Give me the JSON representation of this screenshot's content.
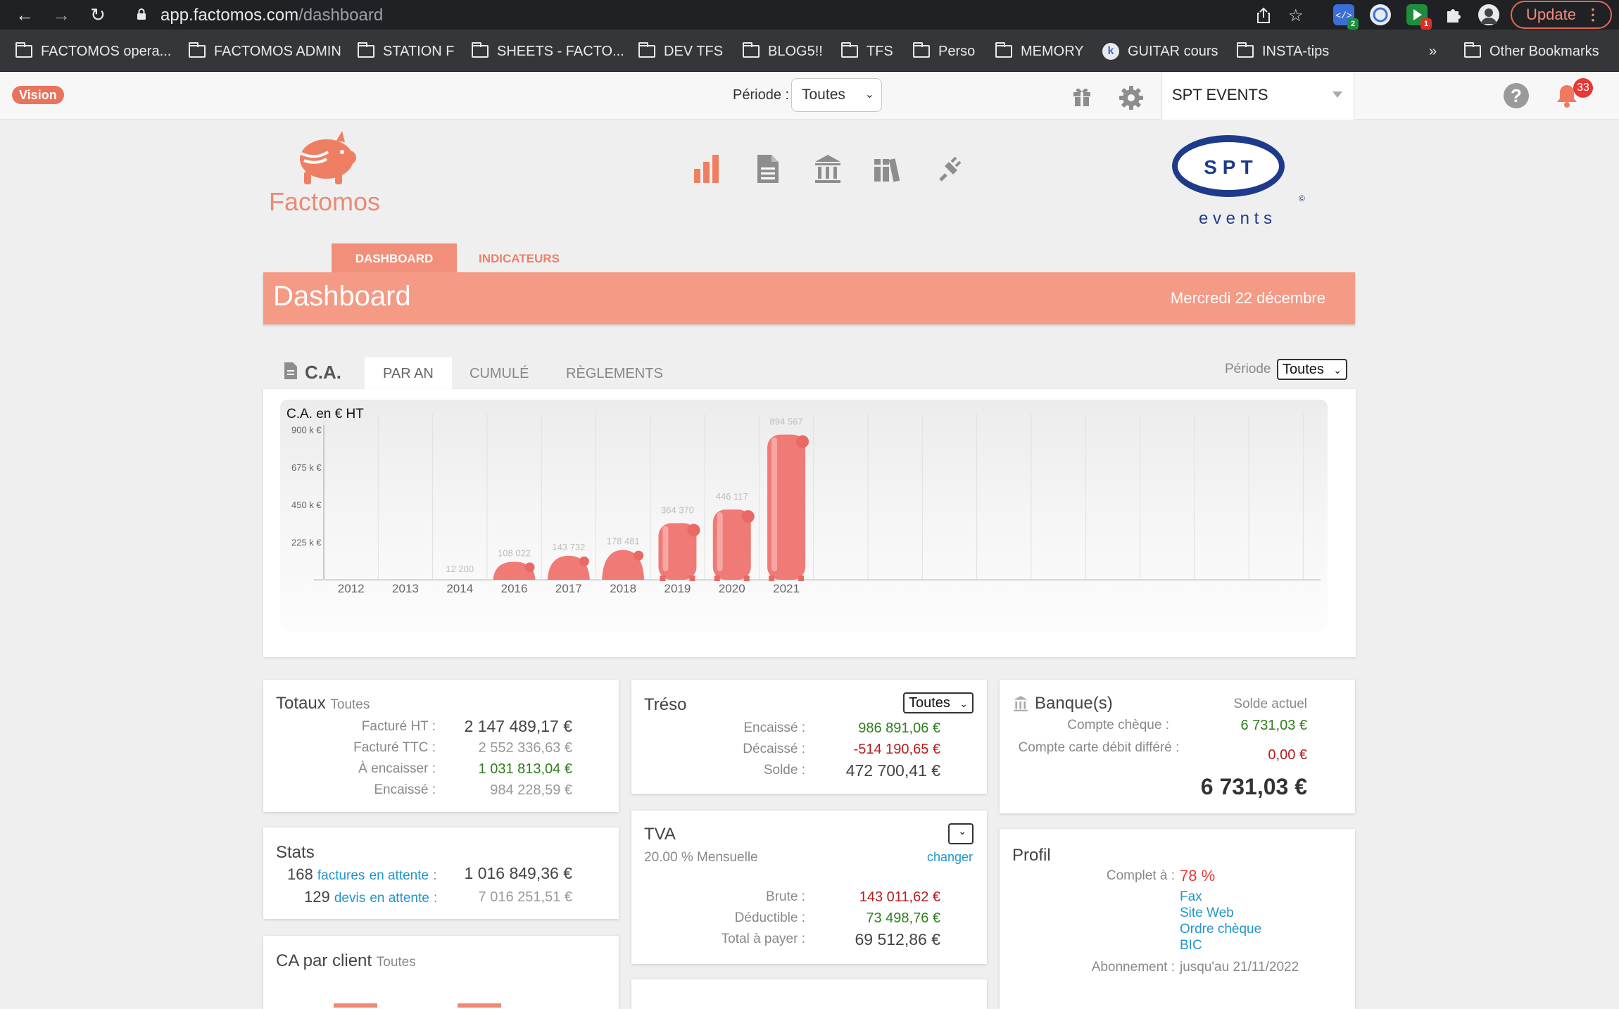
{
  "browser": {
    "url_host": "app.factomos.com",
    "url_path": "/dashboard",
    "update_label": "Update",
    "bookmarks": [
      {
        "label": "FACTOMOS opera..."
      },
      {
        "label": "FACTOMOS ADMIN"
      },
      {
        "label": "STATION F"
      },
      {
        "label": "SHEETS - FACTO..."
      },
      {
        "label": "DEV TFS"
      },
      {
        "label": "BLOG5!!"
      },
      {
        "label": "TFS"
      },
      {
        "label": "Perso"
      },
      {
        "label": "MEMORY"
      },
      {
        "label": "GUITAR cours"
      },
      {
        "label": "INSTA-tips"
      }
    ],
    "more_label": "»",
    "other_bookmarks": "Other Bookmarks",
    "ext_badges": [
      "2",
      "1"
    ]
  },
  "appbar": {
    "vision_label": "Vision",
    "periode_label": "Période :",
    "periode_value": "Toutes",
    "company_name": "SPT EVENTS",
    "notifications_count": "33",
    "help_glyph": "?"
  },
  "header": {
    "logo_text": "Factomos",
    "spt_letters": "S P T",
    "spt_sub": "e v e n t s",
    "spt_copyright": "©"
  },
  "tabs": {
    "dashboard": "DASHBOARD",
    "indicateurs": "INDICATEURS"
  },
  "banner": {
    "title": "Dashboard",
    "date": "Mercredi 22 décembre"
  },
  "ca": {
    "title": "C.A.",
    "tabs": [
      "PAR AN",
      "CUMULÉ",
      "RÈGLEMENTS"
    ],
    "periode_label": "Période",
    "periode_value": "Toutes",
    "chart_label": "C.A. en € HT"
  },
  "chart_data": {
    "type": "bar",
    "title": "C.A. en € HT",
    "categories": [
      "2012",
      "2013",
      "2014",
      "2016",
      "2017",
      "2018",
      "2019",
      "2020",
      "2021"
    ],
    "values": [
      0,
      0,
      12200,
      108022,
      143732,
      178481,
      364370,
      446117,
      894567
    ],
    "value_labels": [
      "",
      "",
      "12 200",
      "108 022",
      "143 732",
      "178 481",
      "364 370",
      "446 117",
      "894 567"
    ],
    "yticks": [
      225000,
      450000,
      675000,
      900000
    ],
    "ytick_labels": [
      "225 k €",
      "450 k €",
      "675 k €",
      "900 k €"
    ],
    "ylim": [
      0,
      900000
    ],
    "grid": true,
    "bar_color": "#ef7a76"
  },
  "totaux": {
    "title": "Totaux",
    "subtitle": "Toutes",
    "rows": [
      {
        "label": "Facturé HT :",
        "value": "2 147 489,17 €"
      },
      {
        "label": "Facturé TTC :",
        "value": "2 552 336,63 €"
      },
      {
        "label": "À encaisser :",
        "value": "1 031 813,04 €"
      },
      {
        "label": "Encaissé :",
        "value": "984 228,59 €"
      }
    ]
  },
  "treso": {
    "title": "Tréso",
    "select_value": "Toutes",
    "rows": [
      {
        "label": "Encaissé :",
        "value": "986 891,06 €"
      },
      {
        "label": "Décaissé :",
        "value": "-514 190,65 €"
      },
      {
        "label": "Solde :",
        "value": "472 700,41 €"
      }
    ]
  },
  "banque": {
    "title": "Banque(s)",
    "solde_label": "Solde actuel",
    "rows": [
      {
        "label": "Compte chèque :",
        "value": "6 731,03 €"
      },
      {
        "label": "Compte carte débit différé :",
        "value": "0,00 €"
      }
    ],
    "total": "6 731,03 €"
  },
  "stats": {
    "title": "Stats",
    "rows": [
      {
        "count": "168",
        "link1": "factures",
        "link2": "en attente",
        "sep": ":",
        "value": "1 016 849,36 €"
      },
      {
        "count": "129",
        "link1": "devis",
        "link2": "en attente",
        "sep": ":",
        "value": "7 016 251,51 €"
      }
    ]
  },
  "tva": {
    "title": "TVA",
    "subtitle": "20.00 % Mensuelle",
    "changer": "changer",
    "rows": [
      {
        "label": "Brute :",
        "value": "143 011,62 €"
      },
      {
        "label": "Déductible :",
        "value": "73 498,76 €"
      },
      {
        "label": "Total à payer :",
        "value": "69 512,86 €"
      }
    ]
  },
  "profil": {
    "title": "Profil",
    "complet_label": "Complet à :",
    "complet_value": "78 %",
    "missing": [
      "Fax",
      "Site Web",
      "Ordre chèque",
      "BIC"
    ],
    "abonnement_label": "Abonnement :",
    "abonnement_value": "jusqu'au 21/11/2022"
  },
  "ca_client": {
    "title": "CA par client",
    "subtitle": "Toutes"
  }
}
